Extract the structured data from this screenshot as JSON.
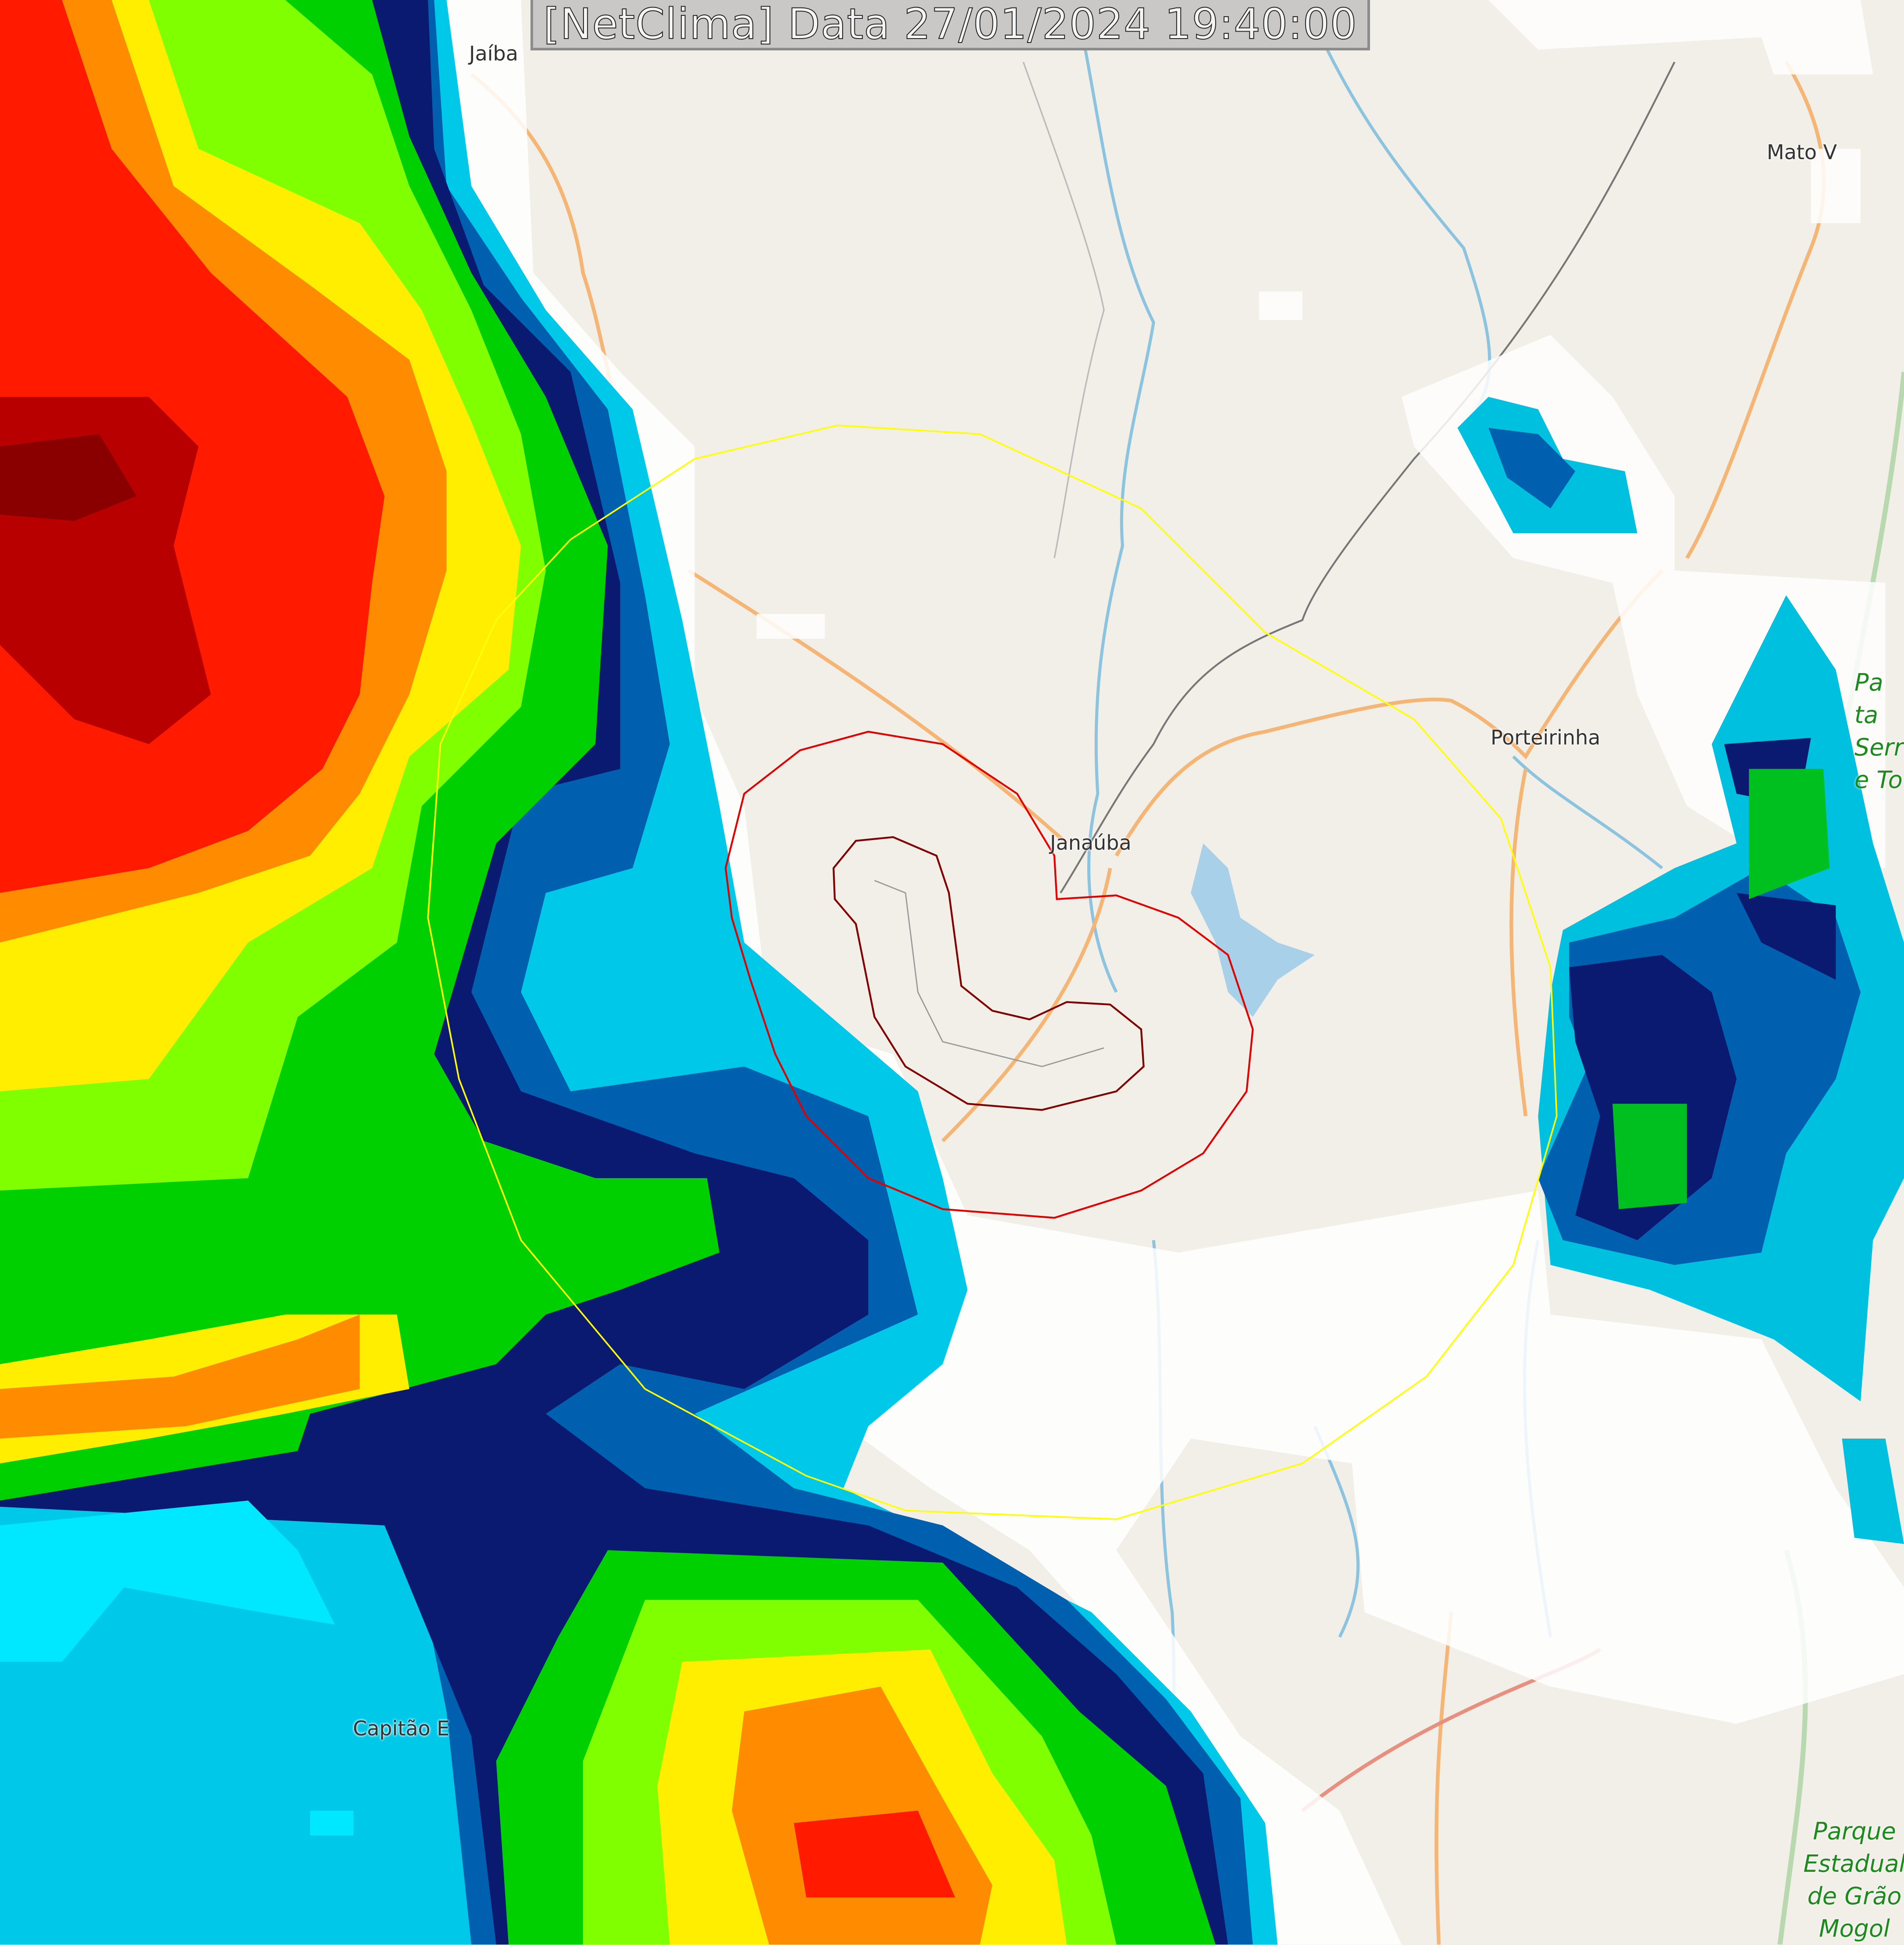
{
  "title": "[NetClima] Data 27/01/2024 19:40:00",
  "places": {
    "jaiba": "Jaíba",
    "mato_verde": "Mato V",
    "porteirinha": "Porteirinha",
    "janauba": "Janaúba",
    "capitao_eneas": "Capitão E"
  },
  "parks": {
    "serra_nova_lines": [
      "Pa",
      "ta",
      "Serr",
      "e To"
    ],
    "grao_mogol_lines": [
      "Parque",
      "Estadual",
      "de Grão",
      "Mogol"
    ]
  },
  "colors": {
    "background": "#f2efe9",
    "radar_scale": [
      "#ffffff",
      "#00ffff",
      "#0090c0",
      "#0050a0",
      "#001060",
      "#006030",
      "#00c000",
      "#00ff00",
      "#c0ff00",
      "#ffff00",
      "#ffa000",
      "#ff6000",
      "#ff0000",
      "#c00000",
      "#900000"
    ],
    "range_ring": "#ffff00",
    "warning_outer": "#e00000",
    "warning_inner": "#800000",
    "road": "#f5b574",
    "river": "#8cc4e0"
  },
  "icons": [
    "range-ring",
    "warning-polygon"
  ]
}
